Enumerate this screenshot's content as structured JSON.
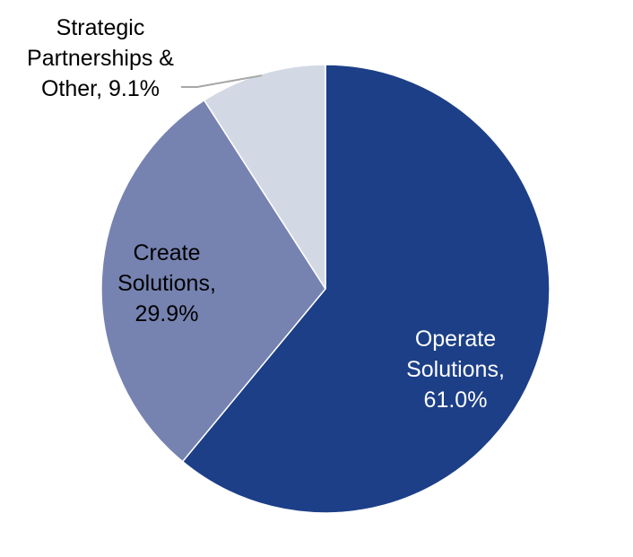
{
  "chart_data": {
    "type": "pie",
    "title": "",
    "slices": [
      {
        "label_lines": [
          "Operate",
          "Solutions,",
          "61.0%"
        ],
        "category": "Operate Solutions",
        "value": 61.0,
        "color": "#1c3f87",
        "label_color": "#ffffff"
      },
      {
        "label_lines": [
          "Create",
          "Solutions,",
          "29.9%"
        ],
        "category": "Create Solutions",
        "value": 29.9,
        "color": "#7683b1",
        "label_color": "#000000"
      },
      {
        "label_lines": [
          "Strategic",
          "Partnerships &",
          "Other, 9.1%"
        ],
        "category": "Strategic Partnerships & Other",
        "value": 9.1,
        "color": "#d3d9e4",
        "label_color": "#000000"
      }
    ],
    "start": "12 o'clock",
    "direction": "clockwise",
    "leader_line_color": "#a6a6a6"
  }
}
